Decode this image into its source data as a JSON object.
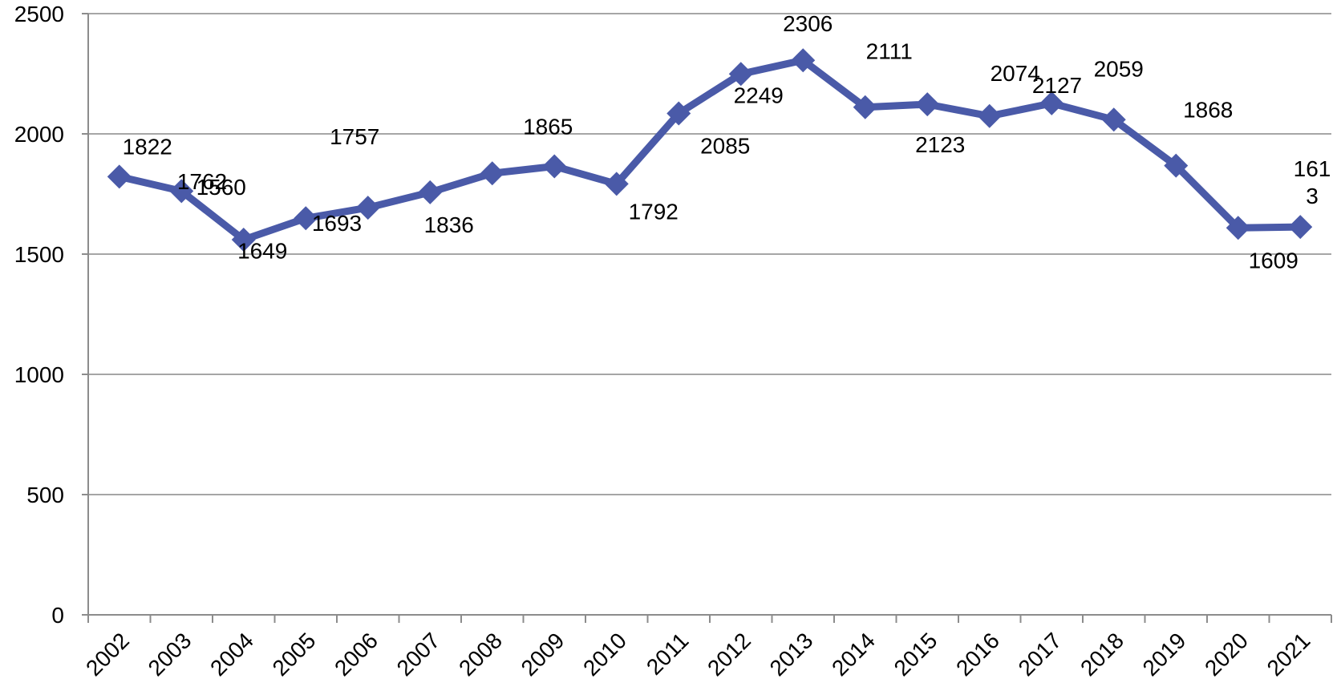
{
  "chart_data": {
    "type": "line",
    "title": "",
    "xlabel": "",
    "ylabel": "",
    "categories": [
      "2002",
      "2003",
      "2004",
      "2005",
      "2006",
      "2007",
      "2008",
      "2009",
      "2010",
      "2011",
      "2012",
      "2013",
      "2014",
      "2015",
      "2016",
      "2017",
      "2018",
      "2019",
      "2020",
      "2021"
    ],
    "series": [
      {
        "values": [
          1822,
          1762,
          1560,
          1649,
          1693,
          1757,
          1836,
          1865,
          1792,
          2085,
          2249,
          2306,
          2111,
          2123,
          2074,
          2127,
          2059,
          1868,
          1609,
          1613
        ],
        "color": "#4a5aa8"
      }
    ],
    "data_labels": [
      "1822",
      "1762",
      "1560",
      "1649",
      "1693",
      "1757",
      "1836",
      "1865",
      "1792",
      "2085",
      "2249",
      "2306",
      "2111",
      "2123",
      "2074",
      "2127",
      "2059",
      "1868",
      "1609",
      "161\n3"
    ],
    "ylim": [
      0,
      2500
    ],
    "yticks": [
      "0",
      "500",
      "1000",
      "1500",
      "2000",
      "2500"
    ],
    "grid": true,
    "legend": "none",
    "grid_color": "#a6a6a6",
    "axis_color": "#8c8c8c"
  }
}
